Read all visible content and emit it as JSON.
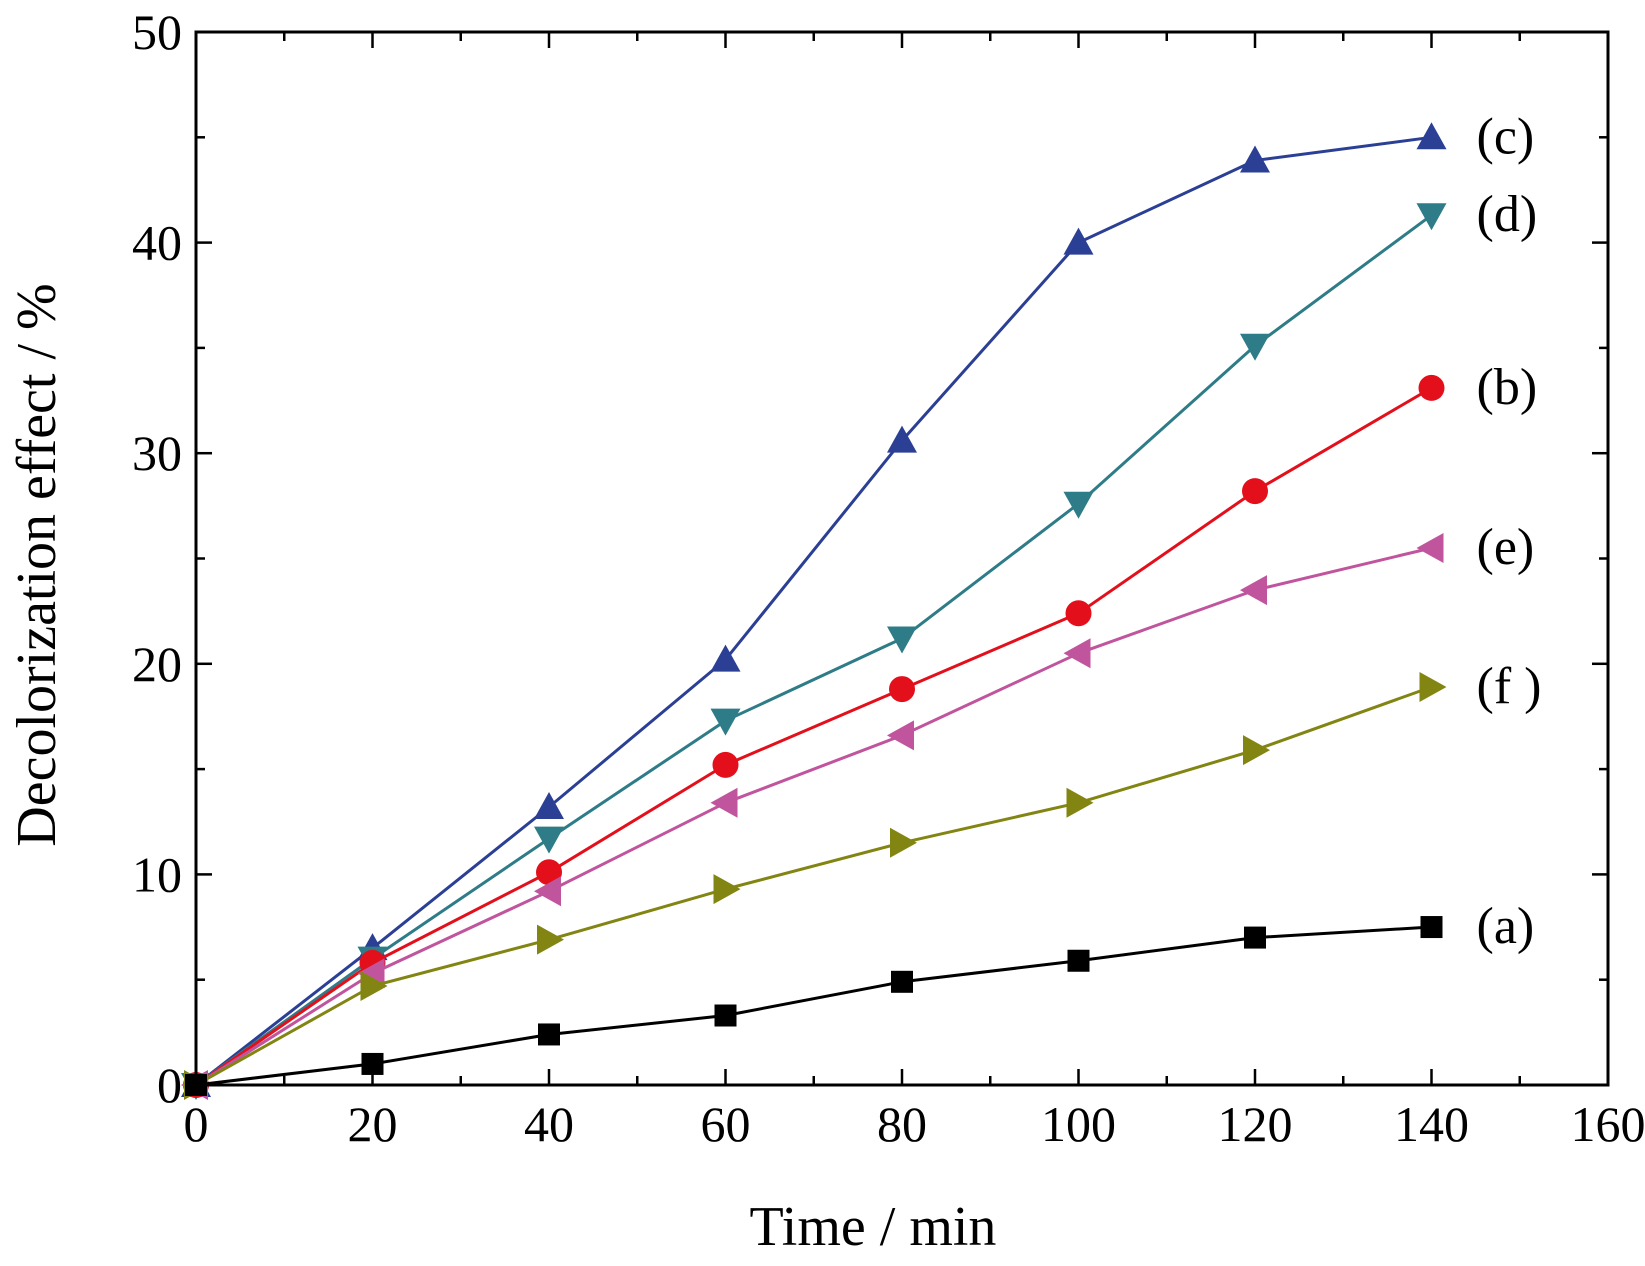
{
  "chart_data": {
    "type": "line",
    "title": "",
    "xlabel": "Time / min",
    "ylabel": "Decolorization effect / %",
    "xlim": [
      0,
      160
    ],
    "ylim": [
      0,
      50
    ],
    "x_ticks": [
      0,
      20,
      40,
      60,
      80,
      100,
      120,
      140,
      160
    ],
    "y_ticks": [
      0,
      10,
      20,
      30,
      40,
      50
    ],
    "x_tick_labels": [
      "0",
      "20",
      "40",
      "60",
      "80",
      "100",
      "120",
      "140",
      "160"
    ],
    "y_tick_labels": [
      "0",
      "10",
      "20",
      "30",
      "40",
      "50"
    ],
    "grid": false,
    "legend": "inline labels at right end of each series",
    "x": [
      0,
      20,
      40,
      60,
      80,
      100,
      120,
      140
    ],
    "series": [
      {
        "name": "(c)",
        "key": "c",
        "color": "#2B3F95",
        "marker": "triangle-up",
        "values": [
          0,
          6.5,
          13.2,
          20.2,
          30.6,
          40.0,
          43.9,
          45.0
        ]
      },
      {
        "name": "(d)",
        "key": "d",
        "color": "#2E7C87",
        "marker": "triangle-down",
        "values": [
          0,
          6.0,
          11.7,
          17.3,
          21.2,
          27.6,
          35.1,
          41.3
        ]
      },
      {
        "name": "(b)",
        "key": "b",
        "color": "#E3101C",
        "marker": "circle",
        "values": [
          0,
          5.8,
          10.1,
          15.2,
          18.8,
          22.4,
          28.2,
          33.1
        ]
      },
      {
        "name": "(e)",
        "key": "e",
        "color": "#C0559E",
        "marker": "triangle-left",
        "values": [
          0,
          5.3,
          9.2,
          13.4,
          16.6,
          20.5,
          23.5,
          25.5
        ]
      },
      {
        "name": "(f )",
        "key": "f",
        "color": "#838512",
        "marker": "triangle-right",
        "values": [
          0,
          4.7,
          6.9,
          9.3,
          11.5,
          13.4,
          15.9,
          18.9
        ]
      },
      {
        "name": "(a)",
        "key": "a",
        "color": "#000000",
        "marker": "square",
        "values": [
          0,
          1.0,
          2.4,
          3.3,
          4.9,
          5.9,
          7.0,
          7.5
        ]
      }
    ]
  }
}
